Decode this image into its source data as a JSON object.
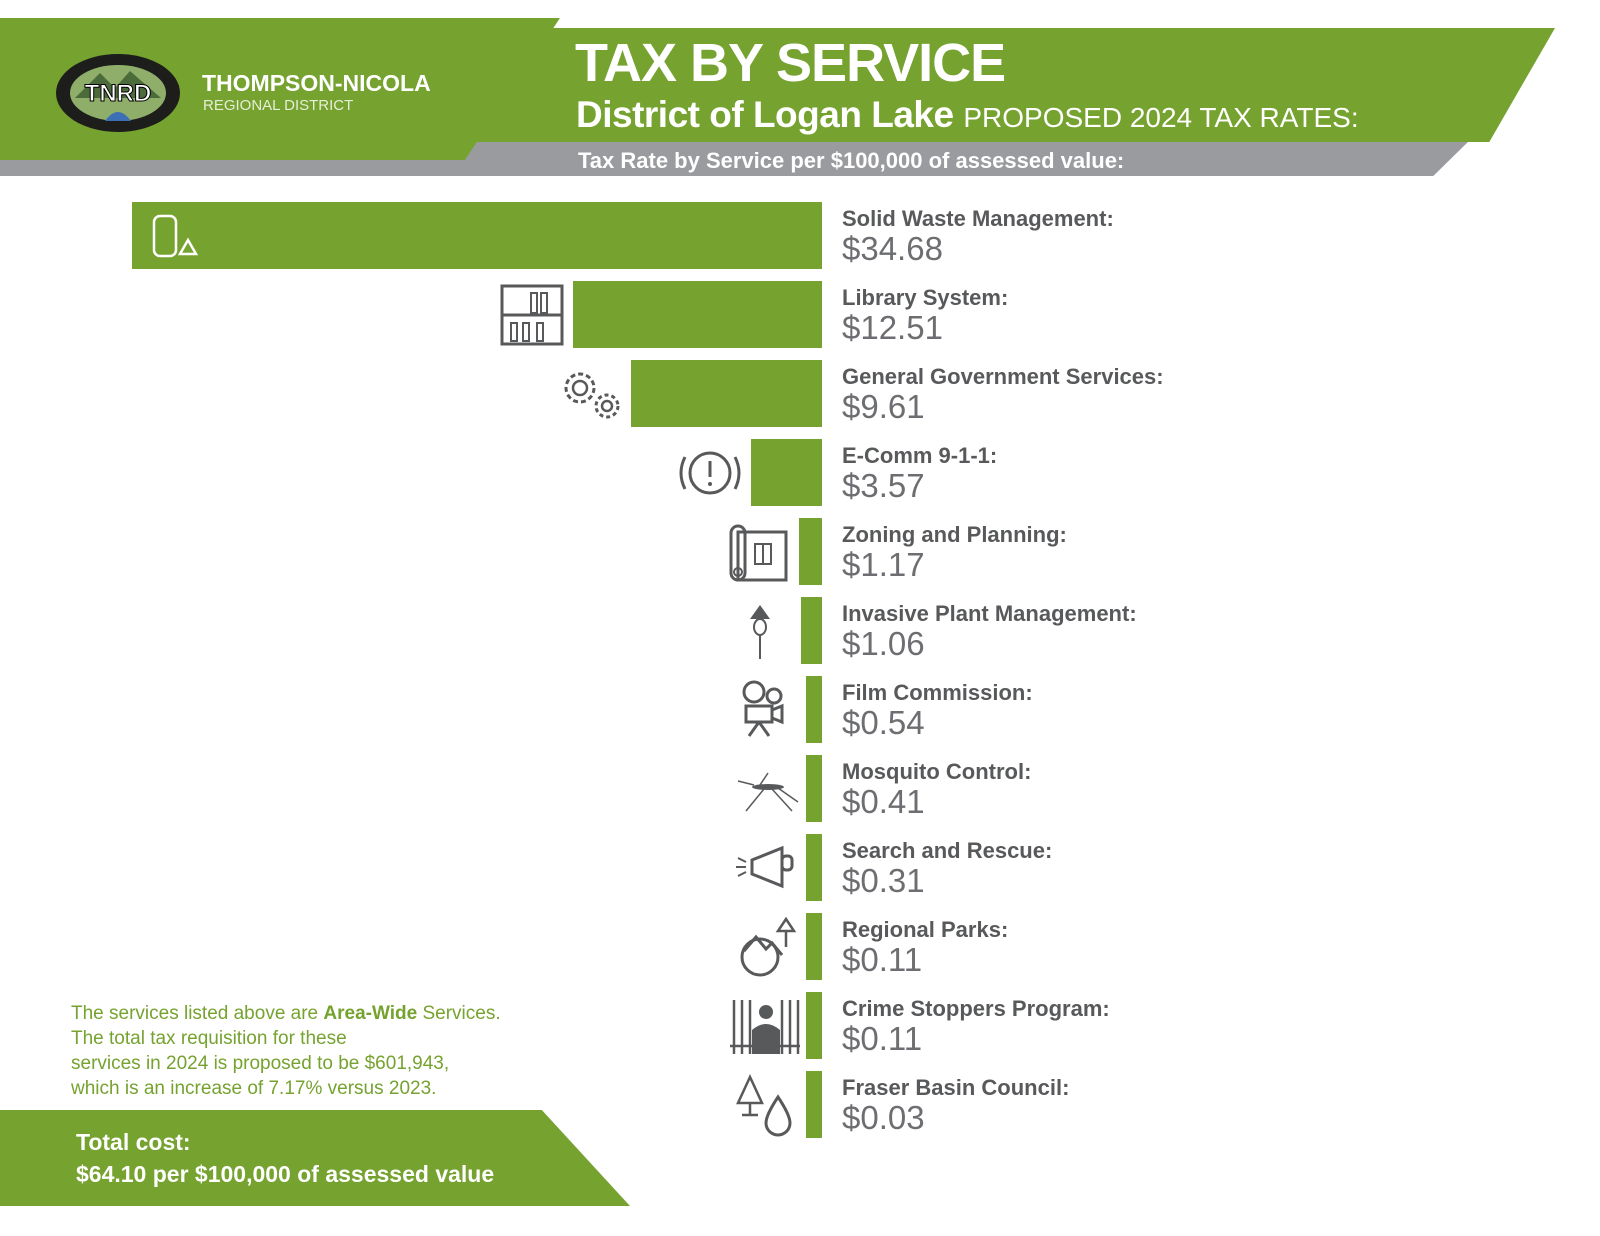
{
  "header": {
    "org_name": "THOMPSON-NICOLA",
    "org_sub": "REGIONAL DISTRICT",
    "logo_text": "TNRD",
    "logo_ring": "THOMPSON-NICOLA REGIONAL DISTRICT",
    "title": "TAX BY SERVICE",
    "district": "District of Logan Lake",
    "proposed": "PROPOSED 2024 TAX RATES:",
    "subtitle": "Tax Rate by Service per $100,000 of assessed value:"
  },
  "colors": {
    "green": "#76a22f",
    "gray": "#9a9b9f",
    "icon": "#58595b"
  },
  "chart_data": {
    "type": "bar",
    "orientation": "horizontal",
    "title": "Tax Rate by Service per $100,000 of assessed value",
    "unit": "$",
    "categories": [
      "Solid Waste Management:",
      "Library System:",
      "General Government Services:",
      "E-Comm 9-1-1:",
      "Zoning and Planning:",
      "Invasive Plant Management:",
      "Film Commission:",
      "Mosquito Control:",
      "Search and Rescue:",
      "Regional Parks:",
      "Crime Stoppers Program:",
      "Fraser Basin Council:"
    ],
    "values": [
      34.68,
      12.51,
      9.61,
      3.57,
      1.17,
      1.06,
      0.54,
      0.41,
      0.31,
      0.11,
      0.11,
      0.03
    ],
    "value_labels": [
      "$34.68",
      "$12.51",
      "$9.61",
      "$3.57",
      "$1.17",
      "$1.06",
      "$0.54",
      "$0.41",
      "$0.31",
      "$0.11",
      "$0.11",
      "$0.03"
    ],
    "icons": [
      "recycle-bottle-icon",
      "library-icon",
      "gears-icon",
      "emergency-alert-icon",
      "blueprint-icon",
      "thistle-icon",
      "film-camera-icon",
      "mosquito-icon",
      "megaphone-icon",
      "parks-icon",
      "jail-icon",
      "tree-water-icon"
    ]
  },
  "note": {
    "pre": "The services listed above are ",
    "bold": "Area-Wide",
    "post": " Services.",
    "line2": "The total tax requisition for these",
    "line3": "services in 2024 is proposed to be $601,943,",
    "line4": "which is an increase of 7.17% versus 2023."
  },
  "total": {
    "label": "Total cost:",
    "value": "$64.10 per $100,000 of assessed value"
  }
}
